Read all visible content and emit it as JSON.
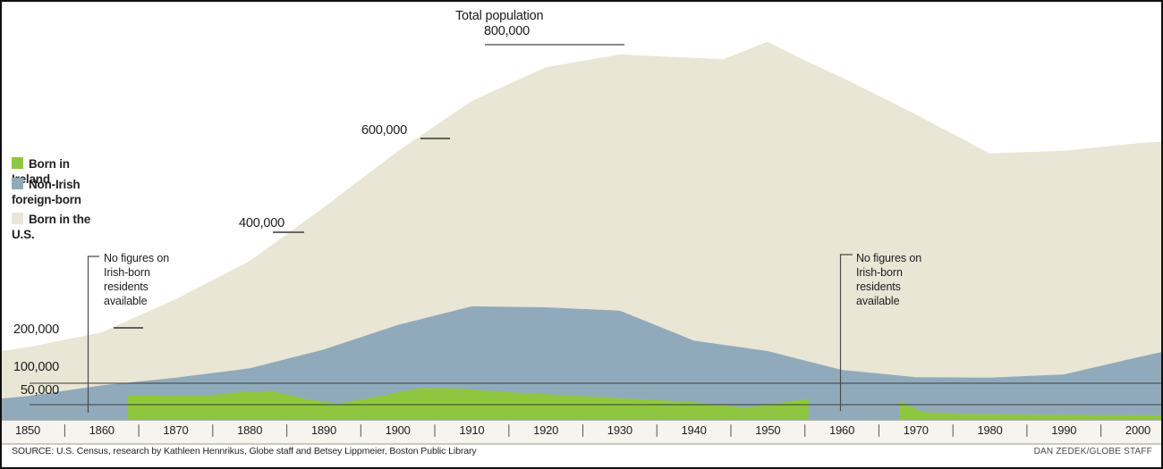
{
  "title": {
    "label": "Total population",
    "value": "800,000"
  },
  "legend": {
    "items": [
      {
        "label": "Born in Ireland",
        "color": "#8ec73f"
      },
      {
        "label": "Non-Irish foreign-born",
        "color": "#91aabb"
      },
      {
        "label": "Born in the U.S.",
        "color": "#e9e6d5"
      }
    ]
  },
  "y_axis_labels": {
    "v800": "800,000",
    "v600": "600,000",
    "v400": "400,000",
    "v200": "200,000",
    "v100": "100,000",
    "v50": "50,000"
  },
  "annotations": {
    "left": {
      "text": "No figures on\nIrish-born\nresidents\navailable"
    },
    "right": {
      "text": "No figures on\nIrish-born\nresidents\navailable"
    }
  },
  "x_axis": {
    "years": [
      "1850",
      "1860",
      "1870",
      "1880",
      "1890",
      "1900",
      "1910",
      "1920",
      "1930",
      "1940",
      "1950",
      "1960",
      "1970",
      "1980",
      "1990",
      "2000"
    ]
  },
  "footer": {
    "source": "SOURCE: U.S. Census, research by Kathleen Hennrikus, Globe staff and Betsey Lippmeier, Boston Public Library",
    "credit": "DAN ZEDEK/GLOBE STAFF"
  },
  "chart_data": {
    "type": "area",
    "stacked": true,
    "title": "Total population",
    "peak_label": "800,000",
    "units": "residents, values in thousands",
    "x_range": [
      1850,
      2000
    ],
    "y_tick_levels": [
      50,
      100,
      200,
      400,
      600,
      800
    ],
    "grid_levels": [
      50,
      100
    ],
    "legend_position": "left",
    "note": "Irish-born series has no data before ~1864 and ~1956-1967 (No figures on Irish-born residents available)",
    "series": [
      {
        "name": "Born in Ireland",
        "role": "irish",
        "color": "#8ec73f",
        "segments": [
          [
            [
              1863.5,
              72
            ],
            [
              1875,
              73
            ],
            [
              1879,
              80
            ],
            [
              1883,
              82
            ],
            [
              1888,
              62
            ],
            [
              1892,
              53
            ],
            [
              1897,
              68
            ],
            [
              1903,
              89
            ],
            [
              1908,
              88
            ],
            [
              1915,
              79
            ],
            [
              1925,
              70
            ],
            [
              1935,
              61
            ],
            [
              1940,
              56
            ],
            [
              1947,
              40
            ],
            [
              1955.5,
              64
            ]
          ],
          [
            [
              1967.8,
              58
            ],
            [
              1971,
              26
            ],
            [
              1976,
              20
            ],
            [
              1985,
              18
            ],
            [
              1995,
              16
            ],
            [
              2003.5,
              15
            ]
          ]
        ]
      },
      {
        "name": "Non-Irish foreign-born",
        "role": "foreign_born_total_boundary",
        "color": "#91aabb",
        "points": [
          [
            1846.3,
            64
          ],
          [
            1850,
            70
          ],
          [
            1860,
            95
          ],
          [
            1870,
            110
          ],
          [
            1880,
            127
          ],
          [
            1890,
            161
          ],
          [
            1900,
            206
          ],
          [
            1910,
            245
          ],
          [
            1920,
            243
          ],
          [
            1930,
            236
          ],
          [
            1940,
            177
          ],
          [
            1950,
            158
          ],
          [
            1960,
            124
          ],
          [
            1970,
            111
          ],
          [
            1980,
            110
          ],
          [
            1990,
            116
          ],
          [
            2000,
            147
          ],
          [
            2003.5,
            157
          ]
        ]
      },
      {
        "name": "Born in the U.S.",
        "role": "total_population_boundary",
        "color": "#e9e6d5",
        "points": [
          [
            1846.3,
            158
          ],
          [
            1850,
            165
          ],
          [
            1860,
            192
          ],
          [
            1870,
            260
          ],
          [
            1880,
            340
          ],
          [
            1890,
            453
          ],
          [
            1900,
            573
          ],
          [
            1910,
            680
          ],
          [
            1920,
            752
          ],
          [
            1930,
            779
          ],
          [
            1944,
            769
          ],
          [
            1950,
            806
          ],
          [
            1955,
            766
          ],
          [
            1960,
            730
          ],
          [
            1970,
            651
          ],
          [
            1980,
            568
          ],
          [
            1990,
            574
          ],
          [
            2000,
            590
          ],
          [
            2003.5,
            594
          ]
        ]
      }
    ]
  }
}
